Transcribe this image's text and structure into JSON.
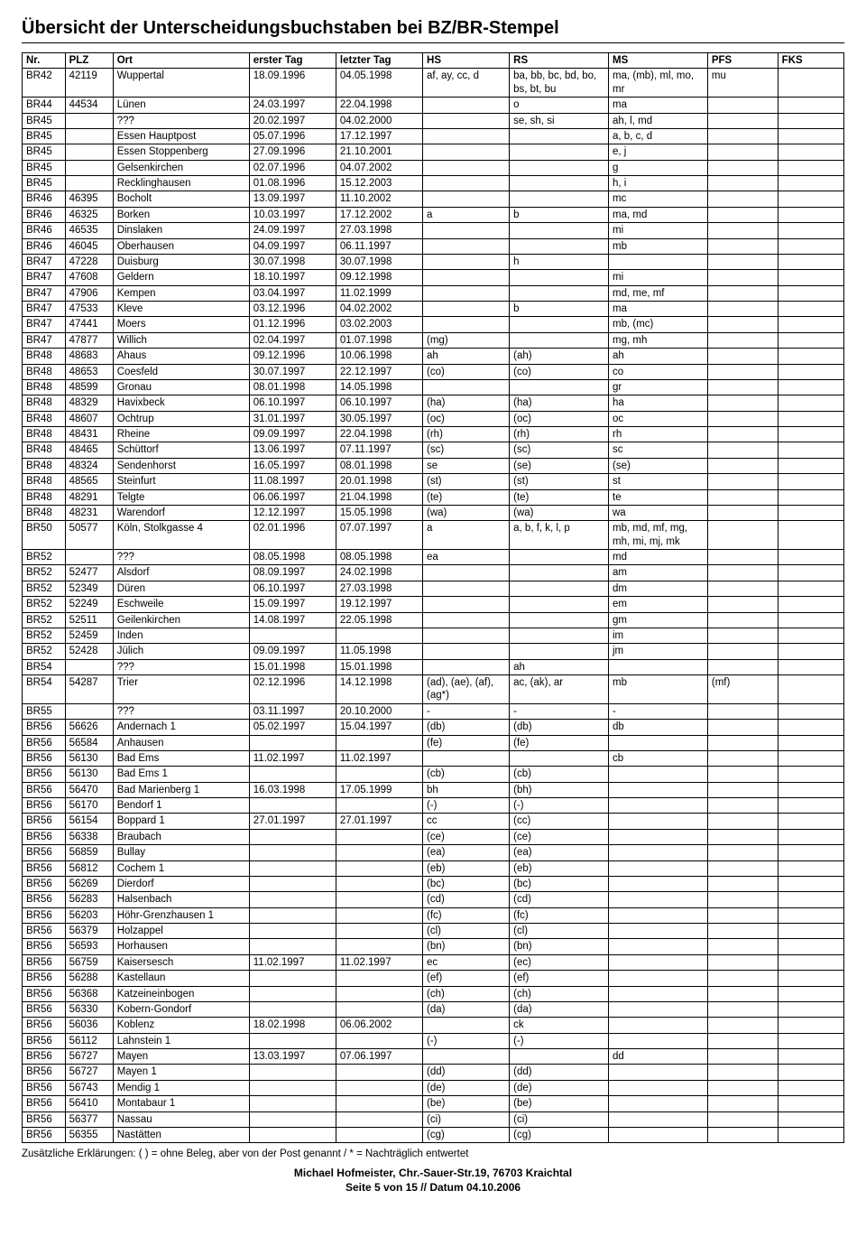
{
  "title": "Übersicht der Unterscheidungsbuchstaben bei BZ/BR-Stempel",
  "columns": [
    "Nr.",
    "PLZ",
    "Ort",
    "erster Tag",
    "letzter Tag",
    "HS",
    "RS",
    "MS",
    "PFS",
    "FKS"
  ],
  "rows": [
    [
      "BR42",
      "42119",
      "Wuppertal",
      "18.09.1996",
      "04.05.1998",
      "af, ay, cc, d",
      "ba, bb, bc, bd, bo, bs, bt, bu",
      "ma, (mb), ml, mo, mr",
      "mu",
      ""
    ],
    [
      "BR44",
      "44534",
      "Lünen",
      "24.03.1997",
      "22.04.1998",
      "",
      "o",
      "ma",
      "",
      ""
    ],
    [
      "BR45",
      "",
      "???",
      "20.02.1997",
      "04.02.2000",
      "",
      "se, sh, si",
      "ah, l, md",
      "",
      ""
    ],
    [
      "BR45",
      "",
      "Essen Hauptpost",
      "05.07.1996",
      "17.12.1997",
      "",
      "",
      "a, b, c, d",
      "",
      ""
    ],
    [
      "BR45",
      "",
      "Essen Stoppenberg",
      "27.09.1996",
      "21.10.2001",
      "",
      "",
      "e, j",
      "",
      ""
    ],
    [
      "BR45",
      "",
      "Gelsenkirchen",
      "02.07.1996",
      "04.07.2002",
      "",
      "",
      "g",
      "",
      ""
    ],
    [
      "BR45",
      "",
      "Recklinghausen",
      "01.08.1996",
      "15.12.2003",
      "",
      "",
      "h, i",
      "",
      ""
    ],
    [
      "BR46",
      "46395",
      "Bocholt",
      "13.09.1997",
      "11.10.2002",
      "",
      "",
      "mc",
      "",
      ""
    ],
    [
      "BR46",
      "46325",
      "Borken",
      "10.03.1997",
      "17.12.2002",
      "a",
      "b",
      "ma, md",
      "",
      ""
    ],
    [
      "BR46",
      "46535",
      "Dinslaken",
      "24.09.1997",
      "27.03.1998",
      "",
      "",
      "mi",
      "",
      ""
    ],
    [
      "BR46",
      "46045",
      "Oberhausen",
      "04.09.1997",
      "06.11.1997",
      "",
      "",
      "mb",
      "",
      ""
    ],
    [
      "BR47",
      "47228",
      "Duisburg",
      "30.07.1998",
      "30.07.1998",
      "",
      "h",
      "",
      "",
      ""
    ],
    [
      "BR47",
      "47608",
      "Geldern",
      "18.10.1997",
      "09.12.1998",
      "",
      "",
      "mi",
      "",
      ""
    ],
    [
      "BR47",
      "47906",
      "Kempen",
      "03.04.1997",
      "11.02.1999",
      "",
      "",
      "md, me, mf",
      "",
      ""
    ],
    [
      "BR47",
      "47533",
      "Kleve",
      "03.12.1996",
      "04.02.2002",
      "",
      "b",
      "ma",
      "",
      ""
    ],
    [
      "BR47",
      "47441",
      "Moers",
      "01.12.1996",
      "03.02.2003",
      "",
      "",
      "mb, (mc)",
      "",
      ""
    ],
    [
      "BR47",
      "47877",
      "Willich",
      "02.04.1997",
      "01.07.1998",
      "(mg)",
      "",
      "mg, mh",
      "",
      ""
    ],
    [
      "BR48",
      "48683",
      "Ahaus",
      "09.12.1996",
      "10.06.1998",
      "ah",
      "(ah)",
      "ah",
      "",
      ""
    ],
    [
      "BR48",
      "48653",
      "Coesfeld",
      "30.07.1997",
      "22.12.1997",
      "(co)",
      "(co)",
      "co",
      "",
      ""
    ],
    [
      "BR48",
      "48599",
      "Gronau",
      "08.01.1998",
      "14.05.1998",
      "",
      "",
      "gr",
      "",
      ""
    ],
    [
      "BR48",
      "48329",
      "Havixbeck",
      "06.10.1997",
      "06.10.1997",
      "(ha)",
      "(ha)",
      "ha",
      "",
      ""
    ],
    [
      "BR48",
      "48607",
      "Ochtrup",
      "31.01.1997",
      "30.05.1997",
      "(oc)",
      "(oc)",
      "oc",
      "",
      ""
    ],
    [
      "BR48",
      "48431",
      "Rheine",
      "09.09.1997",
      "22.04.1998",
      "(rh)",
      "(rh)",
      "rh",
      "",
      ""
    ],
    [
      "BR48",
      "48465",
      "Schüttorf",
      "13.06.1997",
      "07.11.1997",
      "(sc)",
      "(sc)",
      "sc",
      "",
      ""
    ],
    [
      "BR48",
      "48324",
      "Sendenhorst",
      "16.05.1997",
      "08.01.1998",
      "se",
      "(se)",
      "(se)",
      "",
      ""
    ],
    [
      "BR48",
      "48565",
      "Steinfurt",
      "11.08.1997",
      "20.01.1998",
      "(st)",
      "(st)",
      "st",
      "",
      ""
    ],
    [
      "BR48",
      "48291",
      "Telgte",
      "06.06.1997",
      "21.04.1998",
      "(te)",
      "(te)",
      "te",
      "",
      ""
    ],
    [
      "BR48",
      "48231",
      "Warendorf",
      "12.12.1997",
      "15.05.1998",
      "(wa)",
      "(wa)",
      "wa",
      "",
      ""
    ],
    [
      "BR50",
      "50577",
      "Köln, Stolkgasse 4",
      "02.01.1996",
      "07.07.1997",
      "a",
      "a, b, f, k, l, p",
      "mb, md, mf, mg, mh, mi, mj, mk",
      "",
      ""
    ],
    [
      "BR52",
      "",
      "???",
      "08.05.1998",
      "08.05.1998",
      "ea",
      "",
      "md",
      "",
      ""
    ],
    [
      "BR52",
      "52477",
      "Alsdorf",
      "08.09.1997",
      "24.02.1998",
      "",
      "",
      "am",
      "",
      ""
    ],
    [
      "BR52",
      "52349",
      "Düren",
      "06.10.1997",
      "27.03.1998",
      "",
      "",
      "dm",
      "",
      ""
    ],
    [
      "BR52",
      "52249",
      "Eschweile",
      "15.09.1997",
      "19.12.1997",
      "",
      "",
      "em",
      "",
      ""
    ],
    [
      "BR52",
      "52511",
      "Geilenkirchen",
      "14.08.1997",
      "22.05.1998",
      "",
      "",
      "gm",
      "",
      ""
    ],
    [
      "BR52",
      "52459",
      "Inden",
      "",
      "",
      "",
      "",
      "im",
      "",
      ""
    ],
    [
      "BR52",
      "52428",
      "Jülich",
      "09.09.1997",
      "11.05.1998",
      "",
      "",
      "jm",
      "",
      ""
    ],
    [
      "BR54",
      "",
      "???",
      "15.01.1998",
      "15.01.1998",
      "",
      "ah",
      "",
      "",
      ""
    ],
    [
      "BR54",
      "54287",
      "Trier",
      "02.12.1996",
      "14.12.1998",
      "(ad), (ae), (af), (ag*)",
      "ac, (ak), ar",
      "mb",
      "(mf)",
      ""
    ],
    [
      "BR55",
      "",
      "???",
      "03.11.1997",
      "20.10.2000",
      "-",
      "-",
      "-",
      "",
      ""
    ],
    [
      "BR56",
      "56626",
      "Andernach 1",
      "05.02.1997",
      "15.04.1997",
      "(db)",
      "(db)",
      "db",
      "",
      ""
    ],
    [
      "BR56",
      "56584",
      "Anhausen",
      "",
      "",
      "(fe)",
      "(fe)",
      "",
      "",
      ""
    ],
    [
      "BR56",
      "56130",
      "Bad Ems",
      "11.02.1997",
      "11.02.1997",
      "",
      "",
      "cb",
      "",
      ""
    ],
    [
      "BR56",
      "56130",
      "Bad Ems 1",
      "",
      "",
      "(cb)",
      "(cb)",
      "",
      "",
      ""
    ],
    [
      "BR56",
      "56470",
      "Bad Marienberg 1",
      "16.03.1998",
      "17.05.1999",
      "bh",
      "(bh)",
      "",
      "",
      ""
    ],
    [
      "BR56",
      "56170",
      "Bendorf 1",
      "",
      "",
      "(-)",
      "(-)",
      "",
      "",
      ""
    ],
    [
      "BR56",
      "56154",
      "Boppard 1",
      "27.01.1997",
      "27.01.1997",
      "cc",
      "(cc)",
      "",
      "",
      ""
    ],
    [
      "BR56",
      "56338",
      "Braubach",
      "",
      "",
      "(ce)",
      "(ce)",
      "",
      "",
      ""
    ],
    [
      "BR56",
      "56859",
      "Bullay",
      "",
      "",
      "(ea)",
      "(ea)",
      "",
      "",
      ""
    ],
    [
      "BR56",
      "56812",
      "Cochem 1",
      "",
      "",
      "(eb)",
      "(eb)",
      "",
      "",
      ""
    ],
    [
      "BR56",
      "56269",
      "Dierdorf",
      "",
      "",
      "(bc)",
      "(bc)",
      "",
      "",
      ""
    ],
    [
      "BR56",
      "56283",
      "Halsenbach",
      "",
      "",
      "(cd)",
      "(cd)",
      "",
      "",
      ""
    ],
    [
      "BR56",
      "56203",
      "Höhr-Grenzhausen 1",
      "",
      "",
      "(fc)",
      "(fc)",
      "",
      "",
      ""
    ],
    [
      "BR56",
      "56379",
      "Holzappel",
      "",
      "",
      "(cl)",
      "(cl)",
      "",
      "",
      ""
    ],
    [
      "BR56",
      "56593",
      "Horhausen",
      "",
      "",
      "(bn)",
      "(bn)",
      "",
      "",
      ""
    ],
    [
      "BR56",
      "56759",
      "Kaisersesch",
      "11.02.1997",
      "11.02.1997",
      "ec",
      "(ec)",
      "",
      "",
      ""
    ],
    [
      "BR56",
      "56288",
      "Kastellaun",
      "",
      "",
      "(ef)",
      "(ef)",
      "",
      "",
      ""
    ],
    [
      "BR56",
      "56368",
      "Katzeineinbogen",
      "",
      "",
      "(ch)",
      "(ch)",
      "",
      "",
      ""
    ],
    [
      "BR56",
      "56330",
      "Kobern-Gondorf",
      "",
      "",
      "(da)",
      "(da)",
      "",
      "",
      ""
    ],
    [
      "BR56",
      "56036",
      "Koblenz",
      "18.02.1998",
      "06.06.2002",
      "",
      "ck",
      "",
      "",
      ""
    ],
    [
      "BR56",
      "56112",
      "Lahnstein 1",
      "",
      "",
      "(-)",
      "(-)",
      "",
      "",
      ""
    ],
    [
      "BR56",
      "56727",
      "Mayen",
      "13.03.1997",
      "07.06.1997",
      "",
      "",
      "dd",
      "",
      ""
    ],
    [
      "BR56",
      "56727",
      "Mayen 1",
      "",
      "",
      "(dd)",
      "(dd)",
      "",
      "",
      ""
    ],
    [
      "BR56",
      "56743",
      "Mendig 1",
      "",
      "",
      "(de)",
      "(de)",
      "",
      "",
      ""
    ],
    [
      "BR56",
      "56410",
      "Montabaur 1",
      "",
      "",
      "(be)",
      "(be)",
      "",
      "",
      ""
    ],
    [
      "BR56",
      "56377",
      "Nassau",
      "",
      "",
      "(ci)",
      "(ci)",
      "",
      "",
      ""
    ],
    [
      "BR56",
      "56355",
      "Nastätten",
      "",
      "",
      "(cg)",
      "(cg)",
      "",
      "",
      ""
    ]
  ],
  "footnote": "Zusätzliche Erklärungen: ( ) = ohne Beleg, aber von der Post genannt / * = Nachträglich entwertet",
  "footer_line1": "Michael Hofmeister, Chr.-Sauer-Str.19, 76703 Kraichtal",
  "footer_line2": "Seite 5 von 15 // Datum 04.10.2006"
}
